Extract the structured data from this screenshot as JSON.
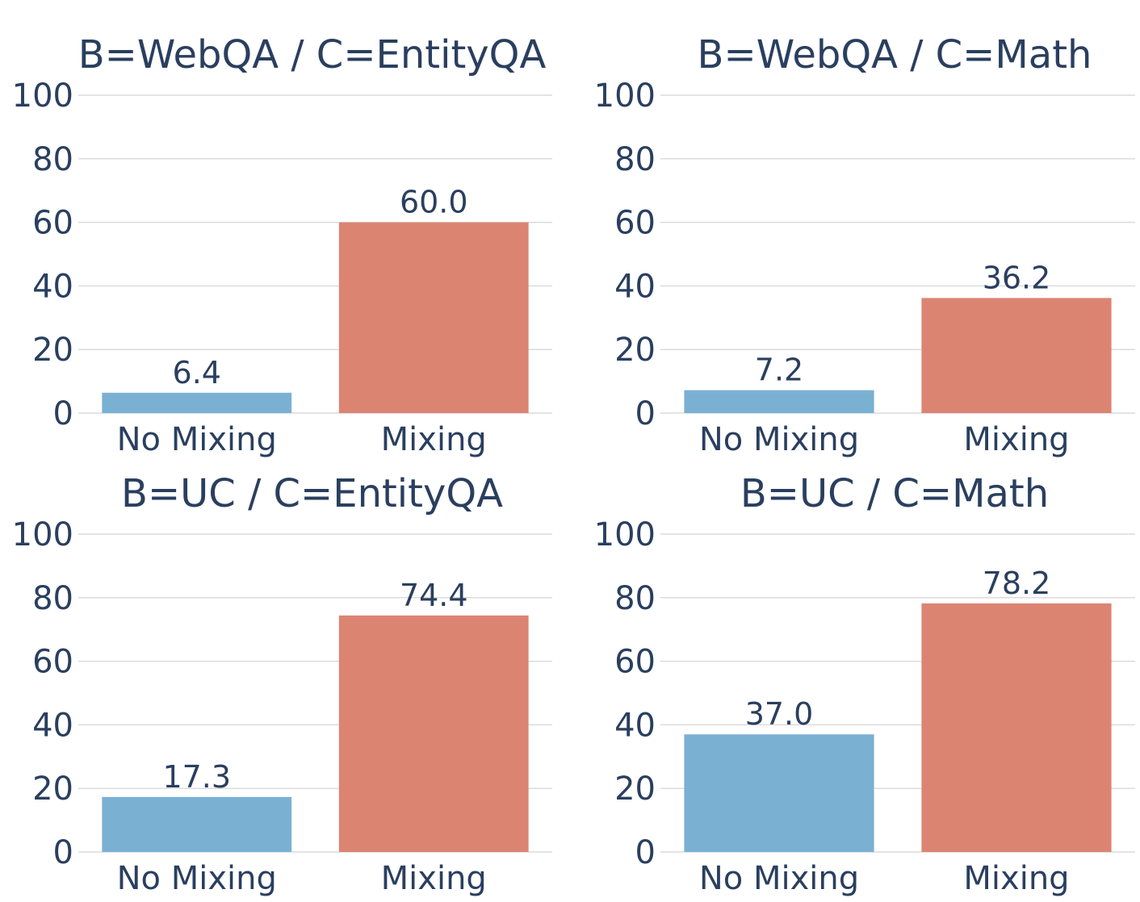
{
  "chart_data": [
    {
      "type": "bar",
      "title": "B=WebQA / C=EntityQA",
      "categories": [
        "No Mixing",
        "Mixing"
      ],
      "values": [
        6.4,
        60.0
      ],
      "value_labels": [
        "6.4",
        "60.0"
      ],
      "colors": [
        "#7ab1d3",
        "#dc8472"
      ],
      "ylim": [
        0,
        100
      ],
      "yticks": [
        "0",
        "20",
        "40",
        "60",
        "80",
        "100"
      ],
      "xlabel": "",
      "ylabel": "",
      "grid": true
    },
    {
      "type": "bar",
      "title": "B=WebQA / C=Math",
      "categories": [
        "No Mixing",
        "Mixing"
      ],
      "values": [
        7.2,
        36.2
      ],
      "value_labels": [
        "7.2",
        "36.2"
      ],
      "colors": [
        "#7ab1d3",
        "#dc8472"
      ],
      "ylim": [
        0,
        100
      ],
      "yticks": [
        "0",
        "20",
        "40",
        "60",
        "80",
        "100"
      ],
      "xlabel": "",
      "ylabel": "",
      "grid": true
    },
    {
      "type": "bar",
      "title": "B=UC / C=EntityQA",
      "categories": [
        "No Mixing",
        "Mixing"
      ],
      "values": [
        17.3,
        74.4
      ],
      "value_labels": [
        "17.3",
        "74.4"
      ],
      "colors": [
        "#7ab1d3",
        "#dc8472"
      ],
      "ylim": [
        0,
        100
      ],
      "yticks": [
        "0",
        "20",
        "40",
        "60",
        "80",
        "100"
      ],
      "xlabel": "",
      "ylabel": "",
      "grid": true
    },
    {
      "type": "bar",
      "title": "B=UC / C=Math",
      "categories": [
        "No Mixing",
        "Mixing"
      ],
      "values": [
        37.0,
        78.2
      ],
      "value_labels": [
        "37.0",
        "78.2"
      ],
      "colors": [
        "#7ab1d3",
        "#dc8472"
      ],
      "ylim": [
        0,
        100
      ],
      "yticks": [
        "0",
        "20",
        "40",
        "60",
        "80",
        "100"
      ],
      "xlabel": "",
      "ylabel": "",
      "grid": true
    }
  ]
}
